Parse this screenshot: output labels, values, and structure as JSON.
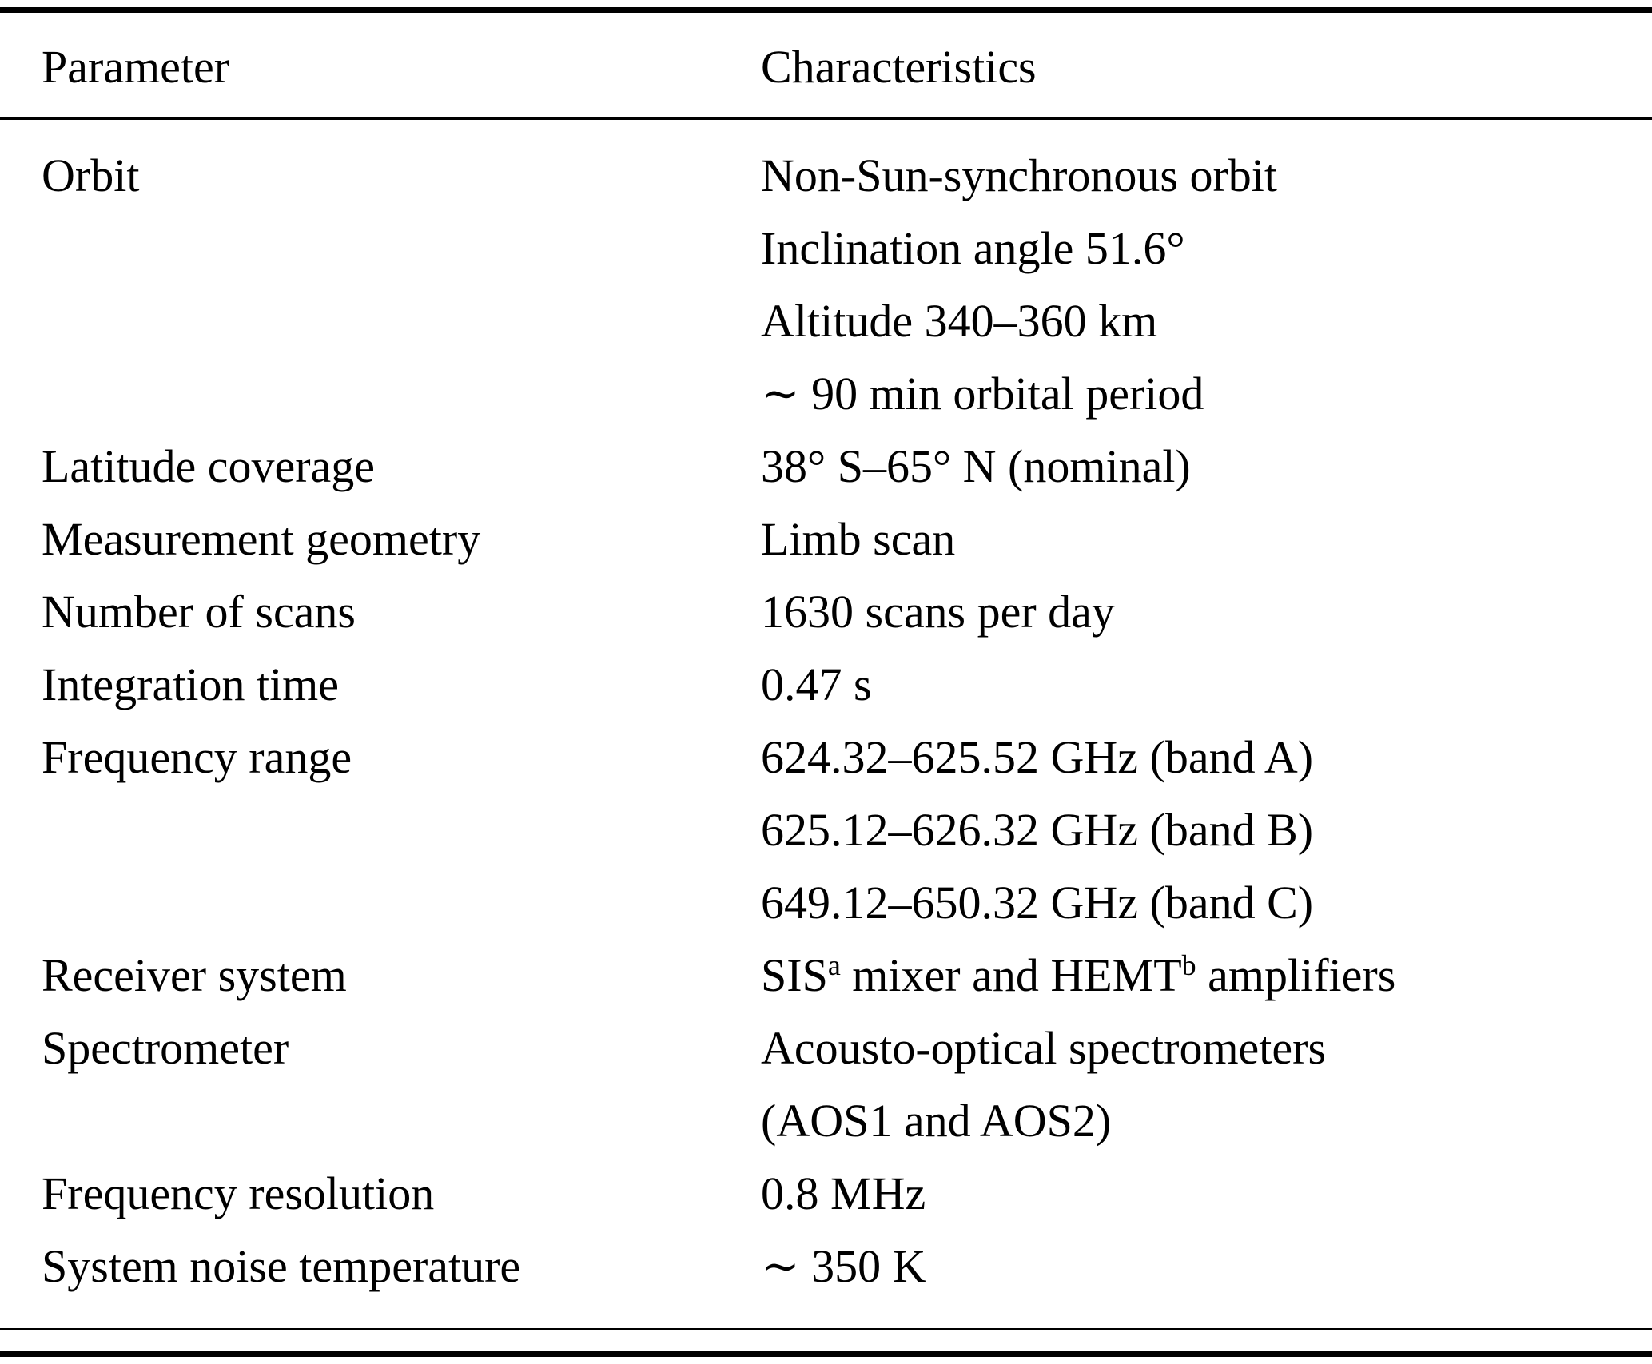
{
  "colors": {
    "text": "#000000",
    "background": "#ffffff",
    "rule": "#000000"
  },
  "table": {
    "header": {
      "parameter": "Parameter",
      "characteristics": "Characteristics"
    },
    "rows": [
      {
        "param": "Orbit",
        "lines": [
          "Non-Sun-synchronous orbit",
          "Inclination angle 51.6°",
          "Altitude 340–360 km",
          "∼ 90 min orbital period"
        ]
      },
      {
        "param": "Latitude coverage",
        "lines": [
          "38° S–65° N (nominal)"
        ]
      },
      {
        "param": "Measurement geometry",
        "lines": [
          "Limb scan"
        ]
      },
      {
        "param": "Number of scans",
        "lines": [
          "1630 scans per day"
        ]
      },
      {
        "param": "Integration time",
        "lines": [
          "0.47 s"
        ]
      },
      {
        "param": "Frequency range",
        "lines": [
          "624.32–625.52 GHz (band A)",
          "625.12–626.32 GHz (band B)",
          "649.12–650.32 GHz (band C)"
        ]
      },
      {
        "param": "Receiver system",
        "lines": [
          [
            {
              "t": "SIS"
            },
            {
              "t": "a",
              "sup": true
            },
            {
              "t": " mixer and HEMT"
            },
            {
              "t": "b",
              "sup": true
            },
            {
              "t": " amplifiers"
            }
          ]
        ]
      },
      {
        "param": "Spectrometer",
        "lines": [
          "Acousto-optical spectrometers",
          "(AOS1 and AOS2)"
        ]
      },
      {
        "param": "Frequency resolution",
        "lines": [
          "0.8 MHz"
        ]
      },
      {
        "param": "System noise temperature",
        "lines": [
          "∼ 350 K"
        ]
      }
    ]
  }
}
